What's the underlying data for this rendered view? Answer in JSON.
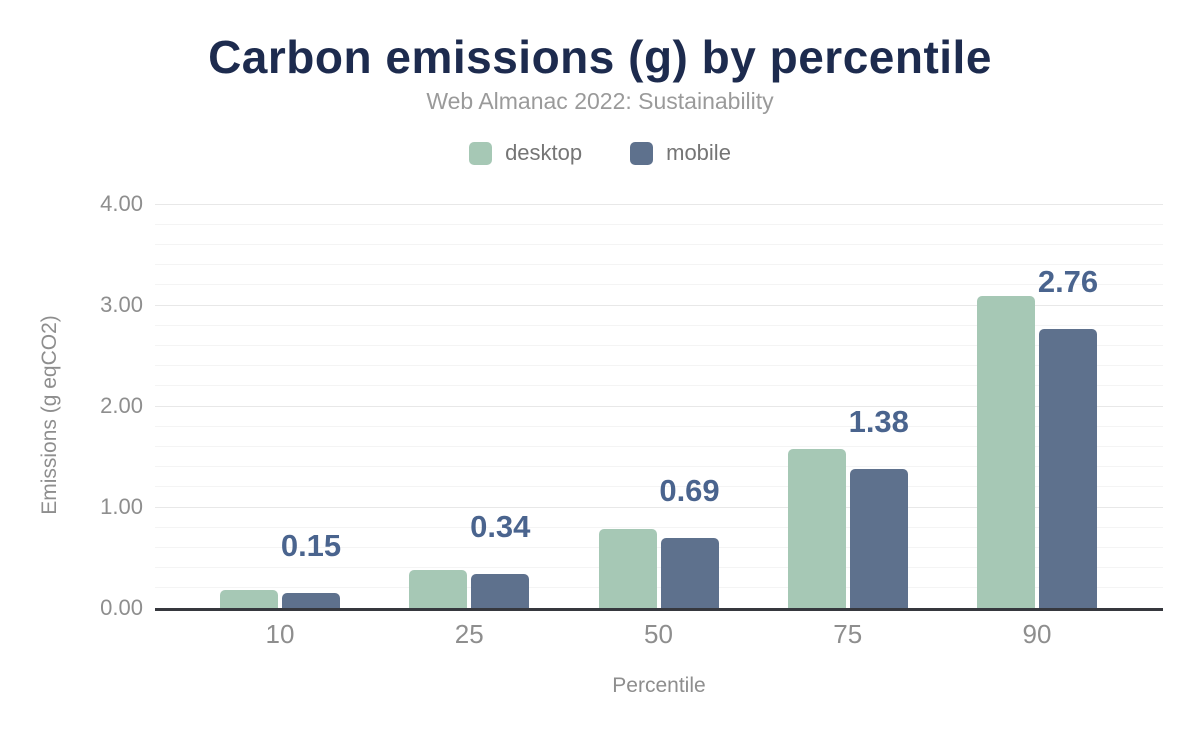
{
  "header": {
    "title": "Carbon emissions (g) by percentile",
    "subtitle": "Web Almanac 2022: Sustainability"
  },
  "chart_data": {
    "type": "bar",
    "categories": [
      "10",
      "25",
      "50",
      "75",
      "90"
    ],
    "series": [
      {
        "name": "desktop",
        "color": "#a6c8b5",
        "values": [
          0.18,
          0.38,
          0.78,
          1.57,
          3.09
        ]
      },
      {
        "name": "mobile",
        "color": "#5e718d",
        "values": [
          0.15,
          0.34,
          0.69,
          1.38,
          2.76
        ],
        "data_labels": [
          "0.15",
          "0.34",
          "0.69",
          "1.38",
          "2.76"
        ]
      }
    ],
    "title": "Carbon emissions (g) by percentile",
    "subtitle": "Web Almanac 2022: Sustainability",
    "xlabel": "Percentile",
    "ylabel": "Emissions (g eqCO2)",
    "ylim": [
      0,
      4
    ],
    "yticks": [
      "0.00",
      "1.00",
      "2.00",
      "3.00",
      "4.00"
    ],
    "grid": {
      "major_step": 1.0,
      "minor_step": 0.2,
      "grid_on": true
    },
    "legend_position": "top",
    "data_label_series": "mobile"
  },
  "colors": {
    "title_text": "#1d2b4e",
    "subtitle_text": "#9a9a9a",
    "legend_text": "#757575",
    "tick_text": "#8e8e8e",
    "axis_title_text": "#8e8e8e",
    "data_label_text": "#4a648e",
    "axis_line": "#36383e",
    "gridline_major": "#e8e8e8",
    "gridline_minor": "#f4f4f4",
    "background": "#ffffff"
  }
}
